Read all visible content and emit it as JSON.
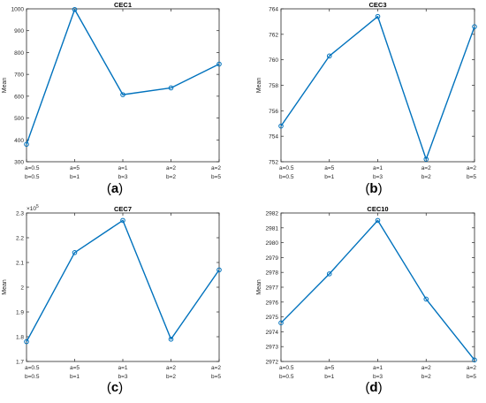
{
  "chart_data": [
    {
      "type": "line",
      "title": "CEC1",
      "panel_label": "a",
      "ylabel": "Mean",
      "ylim": [
        300,
        1000
      ],
      "yticks": [
        300,
        400,
        500,
        600,
        700,
        800,
        900,
        1000
      ],
      "ytick_labels": [
        "300",
        "400",
        "500",
        "600",
        "700",
        "800",
        "900",
        "1000"
      ],
      "exponent_label": "",
      "categories": [
        [
          "a=0.5",
          "b=0.5"
        ],
        [
          "a=5",
          "b=1"
        ],
        [
          "a=1",
          "b=3"
        ],
        [
          "a=2",
          "b=2"
        ],
        [
          "a=2",
          "b=5"
        ]
      ],
      "values": [
        380,
        997,
        607,
        638,
        747
      ],
      "grid": false,
      "color": "#0072BD"
    },
    {
      "type": "line",
      "title": "CEC3",
      "panel_label": "b",
      "ylabel": "Mean",
      "ylim": [
        752,
        764
      ],
      "yticks": [
        752,
        754,
        756,
        758,
        760,
        762,
        764
      ],
      "ytick_labels": [
        "752",
        "754",
        "756",
        "758",
        "760",
        "762",
        "764"
      ],
      "exponent_label": "",
      "categories": [
        [
          "a=0.5",
          "b=0.5"
        ],
        [
          "a=5",
          "b=1"
        ],
        [
          "a=1",
          "b=3"
        ],
        [
          "a=2",
          "b=2"
        ],
        [
          "a=2",
          "b=5"
        ]
      ],
      "values": [
        754.8,
        760.3,
        763.4,
        752.2,
        762.6
      ],
      "grid": false,
      "color": "#0072BD"
    },
    {
      "type": "line",
      "title": "CEC7",
      "panel_label": "c",
      "ylabel": "Mean",
      "ylim": [
        1.7,
        2.3
      ],
      "yticks": [
        1.7,
        1.8,
        1.9,
        2.0,
        2.1,
        2.2,
        2.3
      ],
      "ytick_labels": [
        "1.7",
        "1.8",
        "1.9",
        "2",
        "2.1",
        "2.2",
        "2.3"
      ],
      "exponent_label": "×10",
      "exponent_power": "5",
      "categories": [
        [
          "a=0.5",
          "b=0.5"
        ],
        [
          "a=5",
          "b=1"
        ],
        [
          "a=1",
          "b=3"
        ],
        [
          "a=2",
          "b=2"
        ],
        [
          "a=2",
          "b=5"
        ]
      ],
      "values": [
        1.78,
        2.14,
        2.27,
        1.79,
        2.07
      ],
      "grid": false,
      "color": "#0072BD"
    },
    {
      "type": "line",
      "title": "CEC10",
      "panel_label": "d",
      "ylabel": "Mean",
      "ylim": [
        2972,
        2982
      ],
      "yticks": [
        2972,
        2973,
        2974,
        2975,
        2976,
        2977,
        2978,
        2979,
        2980,
        2981,
        2982
      ],
      "ytick_labels": [
        "2972",
        "2973",
        "2974",
        "2975",
        "2976",
        "2977",
        "2978",
        "2979",
        "2980",
        "2981",
        "2982"
      ],
      "exponent_label": "",
      "categories": [
        [
          "a=0.5",
          "b=0.5"
        ],
        [
          "a=5",
          "b=1"
        ],
        [
          "a=1",
          "b=3"
        ],
        [
          "a=2",
          "b=2"
        ],
        [
          "a=2",
          "b=5"
        ]
      ],
      "values": [
        2974.6,
        2977.9,
        2981.5,
        2976.2,
        2972.1
      ],
      "grid": false,
      "color": "#0072BD"
    }
  ]
}
